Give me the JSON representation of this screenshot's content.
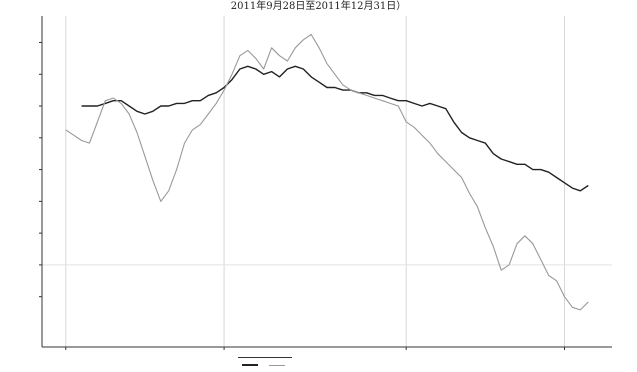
{
  "caption": "2011年9月28日至2011年12月31日）",
  "chart_data": {
    "type": "line",
    "title": "",
    "xlabel": "",
    "ylabel": "",
    "x": [
      0,
      1,
      2,
      3,
      4,
      5,
      6,
      7,
      8,
      9,
      10,
      11,
      12,
      13,
      14,
      15,
      16,
      17,
      18,
      19,
      20,
      21,
      22,
      23,
      24,
      25,
      26,
      27,
      28,
      29,
      30,
      31,
      32,
      33,
      34,
      35,
      36,
      37,
      38,
      39,
      40,
      41,
      42,
      43,
      44,
      45,
      46,
      47,
      48,
      49,
      50,
      51,
      52,
      53,
      54,
      55,
      56,
      57,
      58,
      59,
      60,
      61,
      62,
      63,
      64,
      65,
      66
    ],
    "xlim": [
      -3,
      69
    ],
    "ylim": [
      -0.25,
      1.0
    ],
    "grid": {
      "x": true,
      "y": false
    },
    "x_ticks": [
      {
        "x": 0,
        "label": ""
      },
      {
        "x": 20,
        "label": ""
      },
      {
        "x": 43,
        "label": ""
      },
      {
        "x": 63,
        "label": ""
      }
    ],
    "y_ticks": [
      {
        "y": 0.9,
        "label": ""
      },
      {
        "y": 0.78,
        "label": ""
      },
      {
        "y": 0.66,
        "label": ""
      },
      {
        "y": 0.54,
        "label": ""
      },
      {
        "y": 0.42,
        "label": ""
      },
      {
        "y": 0.3,
        "label": ""
      },
      {
        "y": 0.18,
        "label": ""
      },
      {
        "y": 0.06,
        "label": ""
      },
      {
        "y": -0.06,
        "label": ""
      }
    ],
    "series": [
      {
        "name": "",
        "color": "#222222",
        "values": [
          null,
          null,
          0.66,
          0.66,
          0.66,
          0.67,
          0.68,
          0.68,
          0.66,
          0.64,
          0.63,
          0.64,
          0.66,
          0.66,
          0.67,
          0.67,
          0.68,
          0.68,
          0.7,
          0.71,
          0.73,
          0.76,
          0.8,
          0.81,
          0.8,
          0.78,
          0.79,
          0.77,
          0.8,
          0.81,
          0.8,
          0.77,
          0.75,
          0.73,
          0.73,
          0.72,
          0.72,
          0.71,
          0.71,
          0.7,
          0.7,
          0.69,
          0.68,
          0.68,
          0.67,
          0.66,
          0.67,
          0.66,
          0.65,
          0.6,
          0.56,
          0.54,
          0.53,
          0.52,
          0.48,
          0.46,
          0.45,
          0.44,
          0.44,
          0.42,
          0.42,
          0.41,
          0.39,
          0.37,
          0.35,
          0.34,
          0.36
        ]
      },
      {
        "name": "",
        "color": "#999999",
        "values": [
          0.57,
          0.55,
          0.53,
          0.52,
          0.6,
          0.68,
          0.69,
          0.67,
          0.63,
          0.56,
          0.47,
          0.38,
          0.3,
          0.34,
          0.42,
          0.52,
          0.57,
          0.59,
          0.63,
          0.67,
          0.72,
          0.78,
          0.85,
          0.87,
          0.84,
          0.8,
          0.88,
          0.85,
          0.83,
          0.88,
          0.91,
          0.93,
          0.88,
          0.82,
          0.78,
          0.74,
          0.72,
          0.71,
          0.7,
          0.69,
          0.68,
          0.67,
          0.66,
          0.6,
          0.58,
          0.55,
          0.52,
          0.48,
          0.45,
          0.42,
          0.39,
          0.33,
          0.28,
          0.2,
          0.13,
          0.04,
          0.06,
          0.14,
          0.17,
          0.14,
          0.08,
          0.02,
          0.0,
          -0.06,
          -0.1,
          -0.11,
          -0.08
        ]
      }
    ],
    "legend": {
      "position": "bottom",
      "labels": [
        "",
        ""
      ]
    }
  }
}
